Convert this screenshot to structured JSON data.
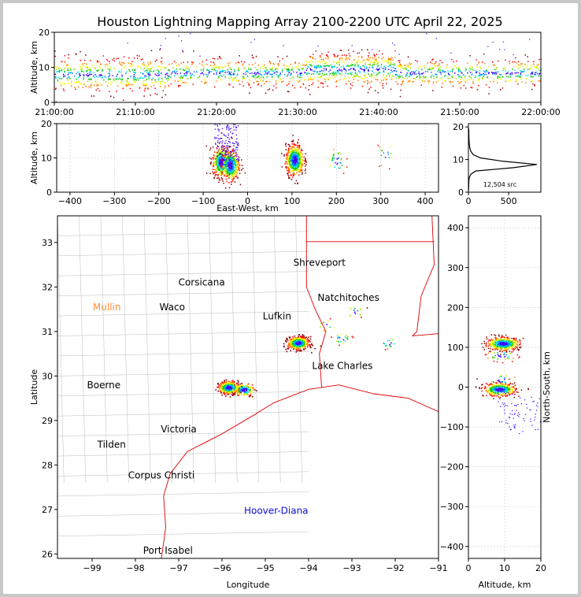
{
  "title": "Houston Lightning Mapping Array 2100-2200 UTC April 22, 2025",
  "colors": {
    "source_scale": [
      "#4000ff",
      "#0080ff",
      "#00e0e0",
      "#00c000",
      "#a0e000",
      "#ffff00",
      "#ff8000",
      "#ff0000",
      "#800000"
    ],
    "county_lines": "#bbbbbb",
    "state_lines": "#dd0000",
    "grid": "#cccccc"
  },
  "chart_data": [
    {
      "id": "time-altitude",
      "type": "scatter",
      "ylabel": "Altitude, km",
      "xlim_minutes": [
        0,
        60
      ],
      "ylim": [
        0,
        20
      ],
      "xticks": [
        "21:00:00",
        "21:10:00",
        "21:20:00",
        "21:30:00",
        "21:40:00",
        "21:50:00",
        "22:00:00"
      ],
      "yticks": [
        "0",
        "10",
        "20"
      ],
      "activity_segments": [
        {
          "start_min": 0,
          "end_min": 14,
          "alt_center": 8,
          "alt_spread": 2.5
        },
        {
          "start_min": 14,
          "end_min": 31,
          "alt_center": 8.5,
          "alt_spread": 2
        },
        {
          "start_min": 31,
          "end_min": 42,
          "alt_center": 9.5,
          "alt_spread": 2.5
        },
        {
          "start_min": 42,
          "end_min": 60,
          "alt_center": 8.5,
          "alt_spread": 2
        }
      ]
    },
    {
      "id": "eastwest-altitude",
      "type": "scatter",
      "xlabel": "East-West, km",
      "ylabel": "Altitude, km",
      "xlim": [
        -430,
        430
      ],
      "ylim": [
        0,
        20
      ],
      "xticks": [
        "−400",
        "−300",
        "−200",
        "−100",
        "0",
        "100",
        "200",
        "300",
        "400"
      ],
      "yticks": [
        "0",
        "10",
        "20"
      ],
      "clusters": [
        {
          "x_km": -60,
          "alt_km": 9,
          "n": 450
        },
        {
          "x_km": -40,
          "alt_km": 8,
          "n": 400
        },
        {
          "x_km": 105,
          "alt_km": 9.5,
          "n": 600
        },
        {
          "x_km": 200,
          "alt_km": 9,
          "n": 30
        },
        {
          "x_km": 310,
          "alt_km": 11,
          "n": 15
        }
      ]
    },
    {
      "id": "altitude-histogram",
      "type": "line",
      "xlim": [
        0,
        900
      ],
      "ylim": [
        0,
        21
      ],
      "xticks": [
        "0",
        "500"
      ],
      "yticks": [
        "0",
        "10",
        "20"
      ],
      "source_count_label": "12,504 src",
      "profile": [
        {
          "alt": 0.5,
          "count": 2
        },
        {
          "alt": 1.5,
          "count": 3
        },
        {
          "alt": 2.5,
          "count": 4
        },
        {
          "alt": 3.5,
          "count": 6
        },
        {
          "alt": 4.5,
          "count": 10
        },
        {
          "alt": 5.5,
          "count": 30
        },
        {
          "alt": 6.5,
          "count": 90
        },
        {
          "alt": 7.5,
          "count": 560
        },
        {
          "alt": 8.5,
          "count": 850
        },
        {
          "alt": 9.5,
          "count": 420
        },
        {
          "alt": 10.5,
          "count": 150
        },
        {
          "alt": 11.5,
          "count": 60
        },
        {
          "alt": 12.5,
          "count": 30
        },
        {
          "alt": 13.5,
          "count": 18
        },
        {
          "alt": 14.5,
          "count": 12
        },
        {
          "alt": 15.5,
          "count": 9
        },
        {
          "alt": 16.5,
          "count": 7
        },
        {
          "alt": 17.5,
          "count": 6
        },
        {
          "alt": 18.5,
          "count": 5
        },
        {
          "alt": 19.5,
          "count": 4
        }
      ]
    },
    {
      "id": "plan-map",
      "type": "scatter",
      "xlabel": "Longitude",
      "ylabel": "Latitude",
      "xlim": [
        -99.8,
        -91
      ],
      "ylim": [
        25.9,
        33.6
      ],
      "xticks": [
        "−99",
        "−98",
        "−97",
        "−96",
        "−95",
        "−94",
        "−93",
        "−92",
        "−91"
      ],
      "yticks": [
        "26",
        "27",
        "28",
        "29",
        "30",
        "31",
        "32",
        "33"
      ],
      "clusters": [
        {
          "lon": -94.25,
          "lat": 30.75,
          "n": 500
        },
        {
          "lon": -95.85,
          "lat": 29.75,
          "n": 380
        },
        {
          "lon": -95.5,
          "lat": 29.7,
          "n": 120
        },
        {
          "lon": -93.25,
          "lat": 30.85,
          "n": 20
        },
        {
          "lon": -92.15,
          "lat": 30.75,
          "n": 15
        },
        {
          "lon": -92.95,
          "lat": 31.45,
          "n": 12
        },
        {
          "lon": -93.6,
          "lat": 31.15,
          "n": 10
        }
      ],
      "cities": [
        {
          "name": "Shreveport",
          "lon": -93.75,
          "lat": 32.55,
          "color": "#000000"
        },
        {
          "name": "Corsicana",
          "lon": -96.47,
          "lat": 32.1,
          "color": "#000000"
        },
        {
          "name": "Natchitoches",
          "lon": -93.08,
          "lat": 31.76,
          "color": "#000000"
        },
        {
          "name": "Mullin",
          "lon": -98.66,
          "lat": 31.55,
          "color": "#ff8c3a"
        },
        {
          "name": "Waco",
          "lon": -97.15,
          "lat": 31.55,
          "color": "#000000"
        },
        {
          "name": "Lufkin",
          "lon": -94.73,
          "lat": 31.34,
          "color": "#000000"
        },
        {
          "name": "Lake Charles",
          "lon": -93.22,
          "lat": 30.23,
          "color": "#000000"
        },
        {
          "name": "Boerne",
          "lon": -98.73,
          "lat": 29.79,
          "color": "#000000"
        },
        {
          "name": "Victoria",
          "lon": -97.0,
          "lat": 28.8,
          "color": "#000000"
        },
        {
          "name": "Tilden",
          "lon": -98.55,
          "lat": 28.46,
          "color": "#000000"
        },
        {
          "name": "Corpus Christi",
          "lon": -97.4,
          "lat": 27.77,
          "color": "#000000"
        },
        {
          "name": "Hoover-Diana",
          "lon": -94.75,
          "lat": 26.97,
          "color": "#1414dc"
        },
        {
          "name": "Port Isabel",
          "lon": -97.25,
          "lat": 26.08,
          "color": "#000000"
        }
      ]
    },
    {
      "id": "altitude-northsouth",
      "type": "scatter",
      "xlabel": "Altitude, km",
      "ylabel": "North-South, km",
      "xlim": [
        0,
        20
      ],
      "ylim": [
        -430,
        430
      ],
      "xticks": [
        "0",
        "10",
        "20"
      ],
      "yticks": [
        "−400",
        "−300",
        "−200",
        "−100",
        "0",
        "100",
        "200",
        "300",
        "400"
      ],
      "clusters": [
        {
          "alt_km": 9.5,
          "y_km": 110,
          "n": 500
        },
        {
          "alt_km": 8.5,
          "y_km": -5,
          "n": 420
        },
        {
          "alt_km": 9,
          "y_km": 80,
          "n": 40
        },
        {
          "alt_km": 9,
          "y_km": 20,
          "n": 20
        }
      ]
    }
  ]
}
